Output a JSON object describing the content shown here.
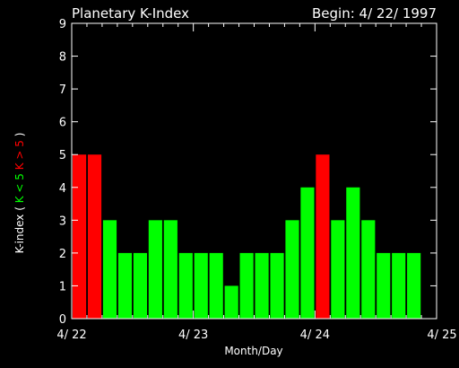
{
  "colors": {
    "background": "#000000",
    "axis": "#ffffff",
    "low": "#00ff00",
    "high": "#ff0000"
  },
  "chart_data": {
    "type": "bar",
    "title": "Planetary K-Index",
    "subtitle": "Begin: 4/ 22/ 1997",
    "xlabel": "Month/Day",
    "ylabel_parts": [
      {
        "text": "K-index",
        "color": "#ffffff"
      },
      {
        "text": "(",
        "color": "#ffffff"
      },
      {
        "text": "K < 5",
        "color": "#00ff00"
      },
      {
        "text": "K > 5",
        "color": "#ff0000"
      },
      {
        "text": ")",
        "color": "#ffffff"
      }
    ],
    "ylim": [
      0,
      9
    ],
    "yticks": [
      0,
      1,
      2,
      3,
      4,
      5,
      6,
      7,
      8,
      9
    ],
    "xlim": [
      0,
      24
    ],
    "xticks": [
      {
        "pos": 0,
        "label": "4/ 22"
      },
      {
        "pos": 8,
        "label": "4/ 23"
      },
      {
        "pos": 16,
        "label": "4/ 24"
      },
      {
        "pos": 24,
        "label": "4/ 25"
      }
    ],
    "bars_per_day": 8,
    "values": [
      5,
      5,
      3,
      2,
      2,
      3,
      3,
      2,
      2,
      2,
      1,
      2,
      2,
      2,
      3,
      4,
      5,
      3,
      4,
      3,
      2,
      2,
      2
    ],
    "threshold": 5
  }
}
